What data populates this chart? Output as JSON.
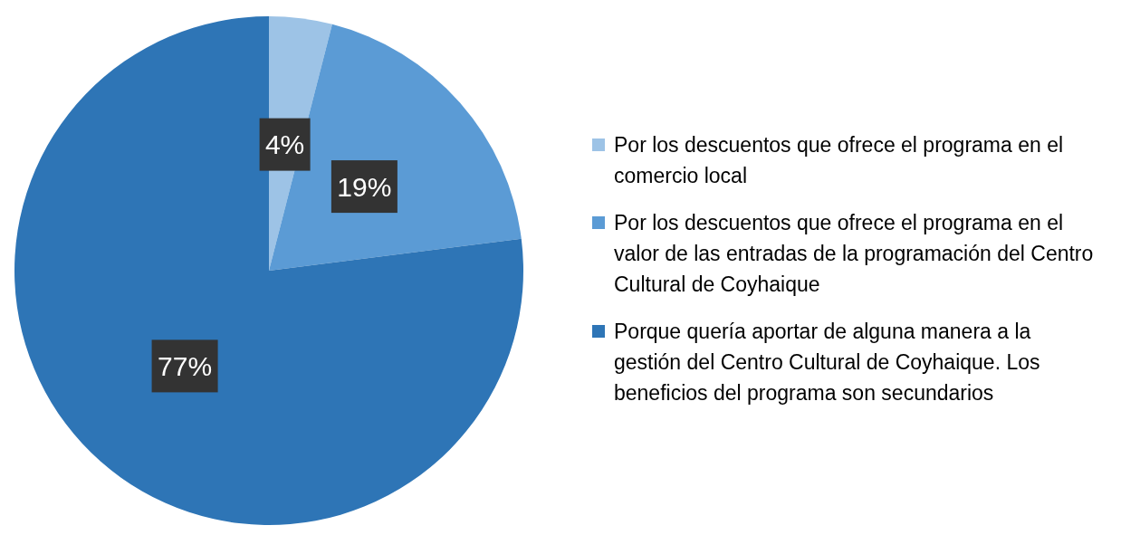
{
  "chart_data": {
    "type": "pie",
    "categories": [
      "Por los descuentos que ofrece el programa en el comercio local",
      "Por los descuentos que ofrece el programa en el valor de las entradas de la programación del Centro Cultural de Coyhaique",
      "Porque quería aportar de alguna manera a la gestión del Centro Cultural de Coyhaique. Los beneficios del programa son secundarios"
    ],
    "values": [
      4,
      19,
      77
    ],
    "colors": [
      "#9dc3e6",
      "#5b9bd5",
      "#2e75b6"
    ],
    "value_labels": [
      "4%",
      "19%",
      "77%"
    ],
    "legend": "right"
  }
}
